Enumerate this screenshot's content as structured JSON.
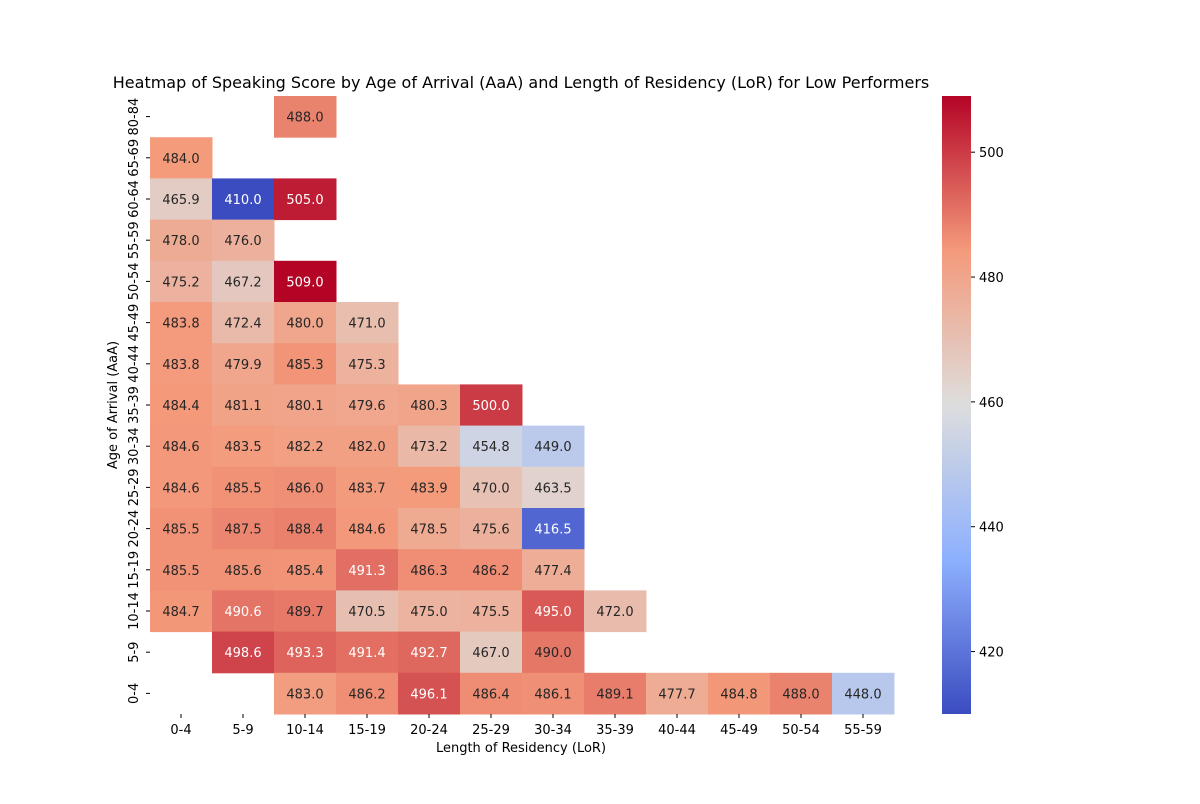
{
  "chart_data": {
    "type": "heatmap",
    "title": "Heatmap of Speaking Score by Age of Arrival (AaA) and Length of Residency (LoR) for Low Performers",
    "xlabel": "Length of Residency (LoR)",
    "ylabel": "Age of Arrival (AaA)",
    "x_categories": [
      "0-4",
      "5-9",
      "10-14",
      "15-19",
      "20-24",
      "25-29",
      "30-34",
      "35-39",
      "40-44",
      "45-49",
      "50-54",
      "55-59"
    ],
    "y_categories": [
      "80-84",
      "65-69",
      "60-64",
      "55-59",
      "50-54",
      "45-49",
      "40-44",
      "35-39",
      "30-34",
      "25-29",
      "20-24",
      "15-19",
      "10-14",
      "5-9",
      "0-4"
    ],
    "values": [
      [
        null,
        null,
        488.0,
        null,
        null,
        null,
        null,
        null,
        null,
        null,
        null,
        null
      ],
      [
        484.0,
        null,
        null,
        null,
        null,
        null,
        null,
        null,
        null,
        null,
        null,
        null
      ],
      [
        465.9,
        410.0,
        505.0,
        null,
        null,
        null,
        null,
        null,
        null,
        null,
        null,
        null
      ],
      [
        478.0,
        476.0,
        null,
        null,
        null,
        null,
        null,
        null,
        null,
        null,
        null,
        null
      ],
      [
        475.2,
        467.2,
        509.0,
        null,
        null,
        null,
        null,
        null,
        null,
        null,
        null,
        null
      ],
      [
        483.8,
        472.4,
        480.0,
        471.0,
        null,
        null,
        null,
        null,
        null,
        null,
        null,
        null
      ],
      [
        483.8,
        479.9,
        485.3,
        475.3,
        null,
        null,
        null,
        null,
        null,
        null,
        null,
        null
      ],
      [
        484.4,
        481.1,
        480.1,
        479.6,
        480.3,
        500.0,
        null,
        null,
        null,
        null,
        null,
        null
      ],
      [
        484.6,
        483.5,
        482.2,
        482.0,
        473.2,
        454.8,
        449.0,
        null,
        null,
        null,
        null,
        null
      ],
      [
        484.6,
        485.5,
        486.0,
        483.7,
        483.9,
        470.0,
        463.5,
        null,
        null,
        null,
        null,
        null
      ],
      [
        485.5,
        487.5,
        488.4,
        484.6,
        478.5,
        475.6,
        416.5,
        null,
        null,
        null,
        null,
        null
      ],
      [
        485.5,
        485.6,
        485.4,
        491.3,
        486.3,
        486.2,
        477.4,
        null,
        null,
        null,
        null,
        null
      ],
      [
        484.7,
        490.6,
        489.7,
        470.5,
        475.0,
        475.5,
        495.0,
        472.0,
        null,
        null,
        null,
        null
      ],
      [
        null,
        498.6,
        493.3,
        491.4,
        492.7,
        467.0,
        490.0,
        null,
        null,
        null,
        null,
        null
      ],
      [
        null,
        null,
        483.0,
        486.2,
        496.1,
        486.4,
        486.1,
        489.1,
        477.7,
        484.8,
        488.0,
        448.0
      ]
    ],
    "colorbar": {
      "min": 410.0,
      "max": 509.0,
      "ticks": [
        420,
        440,
        460,
        480,
        500
      ],
      "colormap": "coolwarm"
    },
    "grid": false,
    "legend": "colorbar-right"
  }
}
